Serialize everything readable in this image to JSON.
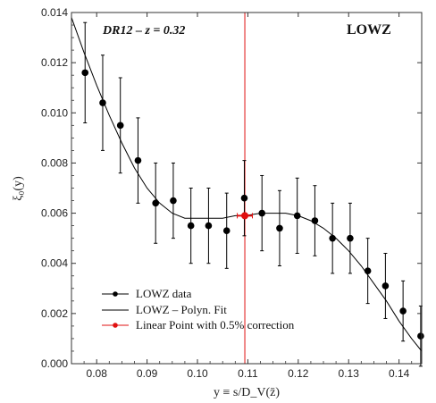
{
  "chart_data": {
    "type": "scatter",
    "xlabel": "y ≡ s/D_V(z̄)",
    "ylabel": "ξ₀(y)",
    "xlim": [
      0.075,
      0.1445
    ],
    "ylim": [
      0.0,
      0.014
    ],
    "x_ticks": [
      0.08,
      0.09,
      0.1,
      0.11,
      0.12,
      0.13,
      0.14
    ],
    "x_tick_labels": [
      "0.08",
      "0.09",
      "0.10",
      "0.11",
      "0.12",
      "0.13",
      "0.14"
    ],
    "y_ticks": [
      0.0,
      0.002,
      0.004,
      0.006,
      0.008,
      0.01,
      0.012,
      0.014
    ],
    "y_tick_labels": [
      "0.000",
      "0.002",
      "0.004",
      "0.006",
      "0.008",
      "0.010",
      "0.012",
      "0.014"
    ],
    "annotations": {
      "left": "DR12  –  z = 0.32",
      "right": "LOWZ"
    },
    "vertical_line_x": 0.1094,
    "legend": {
      "position": "bottom-left",
      "entries": [
        "LOWZ data",
        "LOWZ – Polyn. Fit",
        "Linear Point with 0.5% correction"
      ]
    },
    "series": [
      {
        "name": "LOWZ data",
        "color": "#000000",
        "x": [
          0.0777,
          0.0812,
          0.0847,
          0.0882,
          0.0917,
          0.0952,
          0.0987,
          0.1022,
          0.1058,
          0.1093,
          0.1128,
          0.1163,
          0.1198,
          0.1233,
          0.1268,
          0.1303,
          0.1338,
          0.1373,
          0.1408,
          0.1443
        ],
        "y": [
          0.0116,
          0.0104,
          0.0095,
          0.0081,
          0.0064,
          0.0065,
          0.0055,
          0.0055,
          0.0053,
          0.0066,
          0.006,
          0.0054,
          0.0059,
          0.0057,
          0.005,
          0.005,
          0.0037,
          0.0031,
          0.0021,
          0.0011
        ],
        "yerr": [
          0.002,
          0.0019,
          0.0019,
          0.0017,
          0.0016,
          0.0015,
          0.0015,
          0.0015,
          0.0015,
          0.0015,
          0.0015,
          0.0015,
          0.0015,
          0.0014,
          0.0014,
          0.0014,
          0.0013,
          0.0013,
          0.0012,
          0.0012
        ]
      },
      {
        "name": "LOWZ – Polyn. Fit",
        "color": "#000000",
        "x": [
          0.075,
          0.0775,
          0.08,
          0.0825,
          0.085,
          0.0875,
          0.09,
          0.0925,
          0.095,
          0.0975,
          0.1,
          0.1025,
          0.105,
          0.1075,
          0.1094,
          0.1125,
          0.115,
          0.1175,
          0.12,
          0.1225,
          0.125,
          0.1275,
          0.13,
          0.1325,
          0.135,
          0.1375,
          0.14,
          0.1425,
          0.1445
        ],
        "y": [
          0.0138,
          0.0124,
          0.0111,
          0.0099,
          0.0088,
          0.0078,
          0.007,
          0.0064,
          0.006,
          0.0058,
          0.0058,
          0.0058,
          0.0058,
          0.0059,
          0.0059,
          0.006,
          0.006,
          0.006,
          0.0059,
          0.0057,
          0.0054,
          0.005,
          0.0045,
          0.0039,
          0.0032,
          0.0025,
          0.0017,
          0.001,
          0.0005
        ]
      },
      {
        "name": "Linear Point with 0.5% correction",
        "color": "#e01010",
        "x": [
          0.1094
        ],
        "y": [
          0.0059
        ],
        "xerr": [
          0.0015
        ]
      }
    ]
  }
}
